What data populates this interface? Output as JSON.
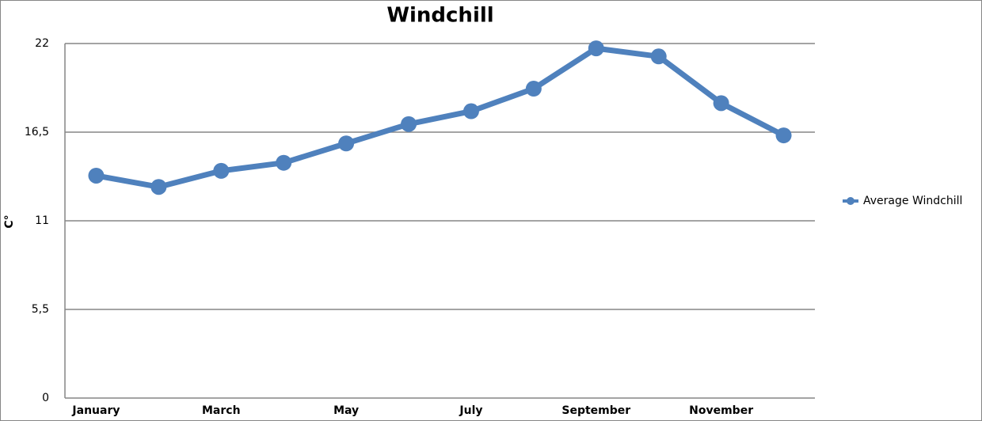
{
  "chart_data": {
    "type": "line",
    "title": "Windchill",
    "y_label": "C°",
    "categories": [
      "January",
      null,
      "March",
      null,
      "May",
      null,
      "July",
      null,
      "September",
      null,
      "November",
      null
    ],
    "series": [
      {
        "name": "Average Windchill",
        "color": "#4f81bd",
        "values": [
          13.8,
          13.1,
          14.1,
          14.6,
          15.8,
          17.0,
          17.8,
          19.2,
          21.7,
          21.2,
          18.3,
          16.3
        ]
      }
    ],
    "ylim": [
      0,
      22
    ],
    "yticks": [
      0,
      {
        "value": 5.5,
        "label": "5,5"
      },
      11,
      {
        "value": 16.5,
        "label": "16,5"
      },
      22
    ],
    "grid": true,
    "legend": "right"
  }
}
